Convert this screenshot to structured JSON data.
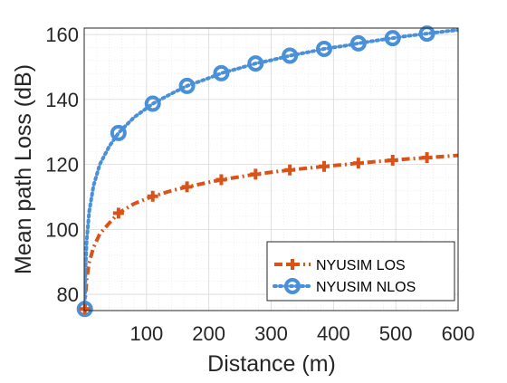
{
  "chart_data": {
    "type": "line",
    "title": "",
    "xlabel": "Distance (m)",
    "ylabel": "Mean path Loss (dB)",
    "xlim": [
      0,
      600
    ],
    "ylim": [
      75,
      162
    ],
    "xticks": [
      100,
      200,
      300,
      400,
      500,
      600
    ],
    "yticks": [
      80,
      100,
      120,
      140,
      160
    ],
    "grid": true,
    "minor_grid": true,
    "legend_position": "bottom-right",
    "series": [
      {
        "name": "NYUSIM LOS",
        "color": "#d95319",
        "line_style": "dash-dot",
        "marker": "plus",
        "x": [
          1,
          55,
          110,
          165,
          220,
          275,
          330,
          385,
          440,
          495,
          550
        ],
        "y": [
          75.5,
          105,
          110.2,
          113.1,
          115.3,
          117,
          118.3,
          119.4,
          120.4,
          121.3,
          122.1
        ],
        "curve_x": [
          1,
          2,
          4,
          8,
          15,
          25,
          40,
          55,
          80,
          110,
          140,
          165,
          200,
          220,
          250,
          275,
          300,
          330,
          360,
          385,
          420,
          440,
          470,
          495,
          520,
          550,
          580,
          600
        ],
        "curve_y": [
          75.5,
          79.5,
          84.7,
          89.8,
          94.5,
          98.6,
          101.9,
          105,
          107.9,
          110.2,
          111.9,
          113.1,
          114.5,
          115.3,
          116.2,
          117,
          117.6,
          118.3,
          118.9,
          119.4,
          120,
          120.4,
          120.9,
          121.3,
          121.7,
          122.1,
          122.5,
          122.8
        ]
      },
      {
        "name": "NYUSIM NLOS",
        "color": "#4a90d9",
        "line_style": "dotted",
        "marker": "circle",
        "x": [
          1,
          55,
          110,
          165,
          220,
          275,
          330,
          385,
          440,
          495,
          550
        ],
        "y": [
          75.5,
          129.7,
          138.7,
          144.2,
          148.1,
          151.1,
          153.5,
          155.6,
          157.3,
          158.9,
          160.3
        ],
        "curve_x": [
          1,
          2,
          4,
          8,
          15,
          25,
          40,
          55,
          80,
          110,
          140,
          165,
          200,
          220,
          250,
          275,
          300,
          330,
          360,
          385,
          420,
          440,
          470,
          495,
          520,
          550,
          580,
          600
        ],
        "curve_y": [
          75.5,
          87.5,
          96.5,
          105.5,
          113.5,
          120,
          125.5,
          129.7,
          134.5,
          138.7,
          141.8,
          144.2,
          146.6,
          148.1,
          149.7,
          151.1,
          152.1,
          153.5,
          154.6,
          155.6,
          156.6,
          157.3,
          158.2,
          158.9,
          159.6,
          160.3,
          161,
          161.4
        ]
      }
    ]
  }
}
